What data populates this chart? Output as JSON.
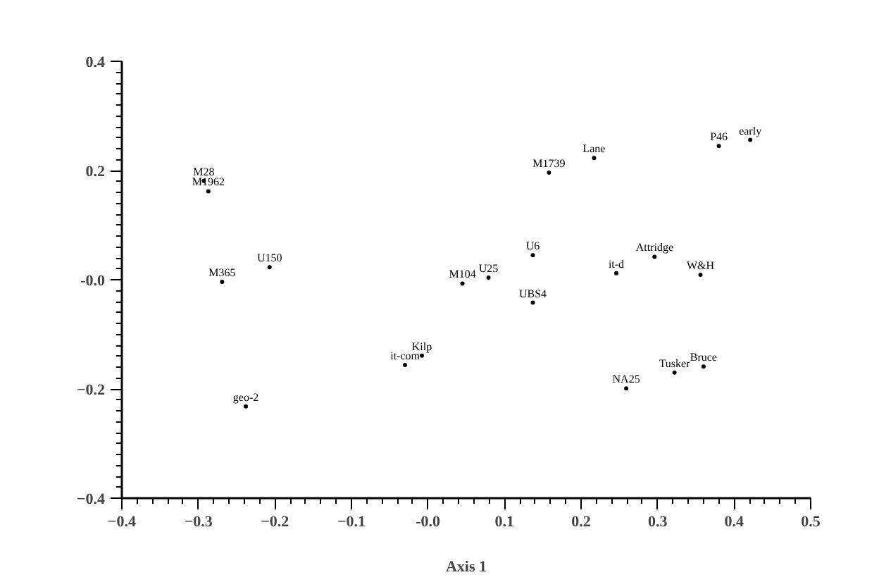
{
  "chart_data": {
    "type": "scatter",
    "xlabel": "Axis 1",
    "marker": "circle",
    "color": "#000000",
    "grid": false,
    "x": [
      -0.293,
      -0.287,
      -0.269,
      -0.207,
      -0.238,
      0.158,
      0.217,
      0.38,
      0.421,
      0.137,
      0.296,
      0.246,
      0.356,
      0.079,
      0.045,
      0.137,
      0.36,
      0.322,
      0.259,
      -0.03,
      -0.008
    ],
    "values": [
      0.181,
      0.162,
      -0.004,
      0.023,
      -0.232,
      0.196,
      0.223,
      0.245,
      0.256,
      0.045,
      0.042,
      0.012,
      0.009,
      0.004,
      -0.007,
      -0.042,
      -0.159,
      -0.17,
      -0.199,
      -0.156,
      -0.139
    ],
    "value_labels": [
      "M28",
      "M1962",
      "M365",
      "U150",
      "geo-2",
      "M1739",
      "Lane",
      "P46",
      "early",
      "U6",
      "Attridge",
      "it-d",
      "W&H",
      "U25",
      "M104",
      "UBS4",
      "Bruce",
      "Tusker",
      "NA25",
      "it-com",
      "Kilp"
    ],
    "xlim": [
      -0.4,
      0.5
    ],
    "xticks": [
      -0.4,
      -0.3,
      -0.2,
      -0.1,
      {
        "value": 0,
        "label": "-0.0"
      },
      0.1,
      0.2,
      0.3,
      0.4,
      0.5
    ],
    "ylim": [
      -0.4,
      0.4
    ],
    "yticks": [
      -0.4,
      -0.2,
      {
        "value": 0,
        "label": "-0.0"
      },
      0.2,
      0.4
    ]
  }
}
